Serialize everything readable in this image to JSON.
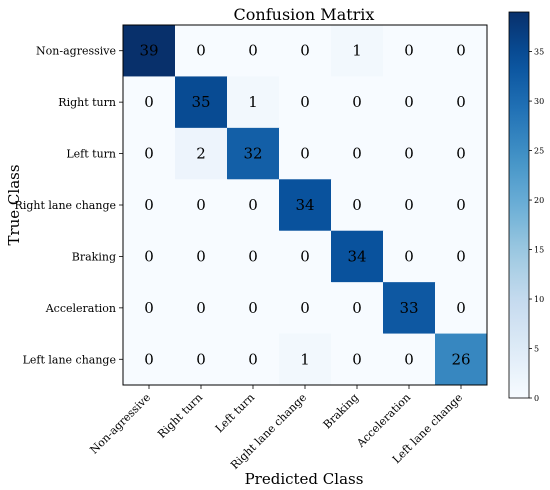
{
  "chart_data": {
    "type": "heatmap",
    "title": "Confusion Matrix",
    "xlabel": "Predicted Class",
    "ylabel": "True Class",
    "x_categories": [
      "Non-agressive",
      "Right turn",
      "Left turn",
      "Right lane change",
      "Braking",
      "Acceleration",
      "Left lane change"
    ],
    "y_categories": [
      "Non-agressive",
      "Right turn",
      "Left turn",
      "Right lane change",
      "Braking",
      "Acceleration",
      "Left lane change"
    ],
    "values": [
      [
        39,
        0,
        0,
        0,
        1,
        0,
        0
      ],
      [
        0,
        35,
        1,
        0,
        0,
        0,
        0
      ],
      [
        0,
        2,
        32,
        0,
        0,
        0,
        0
      ],
      [
        0,
        0,
        0,
        34,
        0,
        0,
        0
      ],
      [
        0,
        0,
        0,
        0,
        34,
        0,
        0
      ],
      [
        0,
        0,
        0,
        0,
        0,
        33,
        0
      ],
      [
        0,
        0,
        0,
        1,
        0,
        0,
        26
      ]
    ],
    "colormap": "Blues",
    "colorbar": {
      "range": [
        0,
        39
      ],
      "ticks": [
        0,
        5,
        10,
        15,
        20,
        25,
        30,
        35
      ]
    }
  }
}
